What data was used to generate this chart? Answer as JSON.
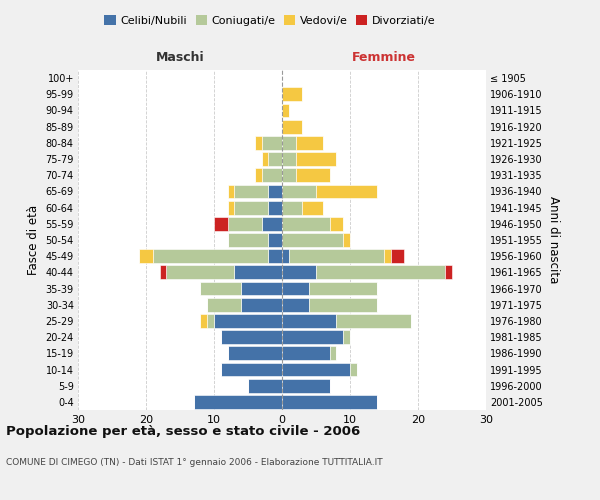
{
  "age_groups": [
    "0-4",
    "5-9",
    "10-14",
    "15-19",
    "20-24",
    "25-29",
    "30-34",
    "35-39",
    "40-44",
    "45-49",
    "50-54",
    "55-59",
    "60-64",
    "65-69",
    "70-74",
    "75-79",
    "80-84",
    "85-89",
    "90-94",
    "95-99",
    "100+"
  ],
  "birth_years": [
    "2001-2005",
    "1996-2000",
    "1991-1995",
    "1986-1990",
    "1981-1985",
    "1976-1980",
    "1971-1975",
    "1966-1970",
    "1961-1965",
    "1956-1960",
    "1951-1955",
    "1946-1950",
    "1941-1945",
    "1936-1940",
    "1931-1935",
    "1926-1930",
    "1921-1925",
    "1916-1920",
    "1911-1915",
    "1906-1910",
    "≤ 1905"
  ],
  "maschi": {
    "celibi": [
      13,
      5,
      9,
      8,
      9,
      10,
      6,
      6,
      7,
      2,
      2,
      3,
      2,
      2,
      0,
      0,
      0,
      0,
      0,
      0,
      0
    ],
    "coniugati": [
      0,
      0,
      0,
      0,
      0,
      1,
      5,
      6,
      10,
      17,
      6,
      5,
      5,
      5,
      3,
      2,
      3,
      0,
      0,
      0,
      0
    ],
    "vedovi": [
      0,
      0,
      0,
      0,
      0,
      1,
      0,
      0,
      0,
      2,
      0,
      0,
      1,
      1,
      1,
      1,
      1,
      0,
      0,
      0,
      0
    ],
    "divorziati": [
      0,
      0,
      0,
      0,
      0,
      0,
      0,
      0,
      1,
      0,
      0,
      2,
      0,
      0,
      0,
      0,
      0,
      0,
      0,
      0,
      0
    ]
  },
  "femmine": {
    "nubili": [
      14,
      7,
      10,
      7,
      9,
      8,
      4,
      4,
      5,
      1,
      0,
      0,
      0,
      0,
      0,
      0,
      0,
      0,
      0,
      0,
      0
    ],
    "coniugate": [
      0,
      0,
      1,
      1,
      1,
      11,
      10,
      10,
      19,
      14,
      9,
      7,
      3,
      5,
      2,
      2,
      2,
      0,
      0,
      0,
      0
    ],
    "vedove": [
      0,
      0,
      0,
      0,
      0,
      0,
      0,
      0,
      0,
      1,
      1,
      2,
      3,
      9,
      5,
      6,
      4,
      3,
      1,
      3,
      0
    ],
    "divorziate": [
      0,
      0,
      0,
      0,
      0,
      0,
      0,
      0,
      1,
      2,
      0,
      0,
      0,
      0,
      0,
      0,
      0,
      0,
      0,
      0,
      0
    ]
  },
  "colors": {
    "celibi_nubili": "#4472a8",
    "coniugati": "#b5c99a",
    "vedovi": "#f5c842",
    "divorziati": "#cc2222"
  },
  "title": "Popolazione per età, sesso e stato civile - 2006",
  "subtitle": "COMUNE DI CIMEGO (TN) - Dati ISTAT 1° gennaio 2006 - Elaborazione TUTTITALIA.IT",
  "xlabel_left": "Maschi",
  "xlabel_right": "Femmine",
  "ylabel_left": "Fasce di età",
  "ylabel_right": "Anni di nascita",
  "xlim": 30,
  "bg_color": "#f0f0f0",
  "plot_bg": "#ffffff",
  "grid_color": "#cccccc"
}
